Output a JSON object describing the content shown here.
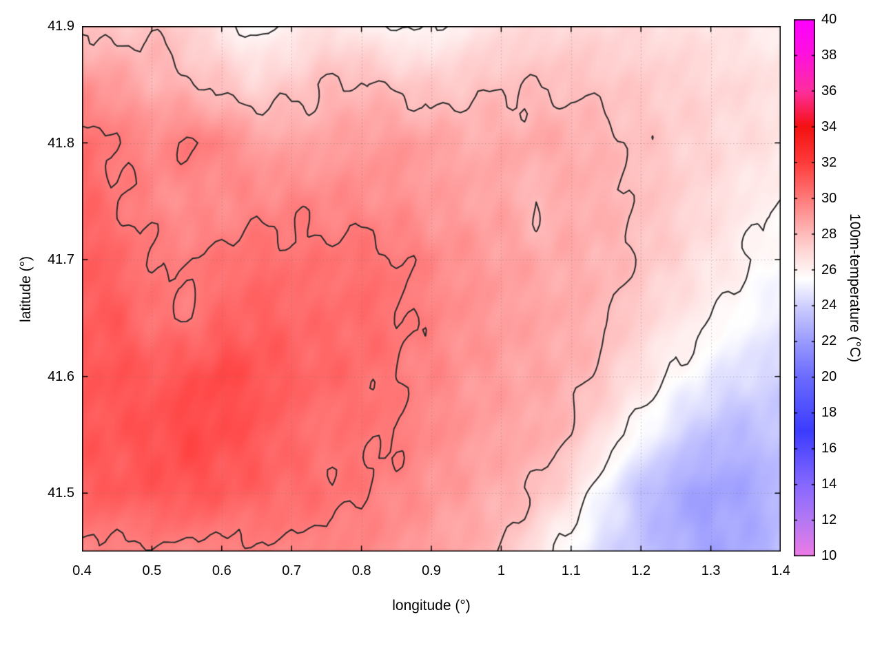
{
  "chart_data": {
    "type": "heatmap",
    "title": "",
    "xlabel": "longitude (°)",
    "ylabel": "latitude (°)",
    "colorbar_label": "100m-temperature (°C)",
    "x_range": [
      0.4,
      1.4
    ],
    "y_range": [
      41.45,
      41.9
    ],
    "x_ticks": [
      0.4,
      0.5,
      0.6,
      0.7,
      0.8,
      0.9,
      1.0,
      1.1,
      1.2,
      1.3,
      1.4
    ],
    "x_tick_labels": [
      "0.4",
      "0.5",
      "0.6",
      "0.7",
      "0.8",
      "0.9",
      "1",
      "1.1",
      "1.2",
      "1.3",
      "1.4"
    ],
    "y_ticks": [
      41.5,
      41.6,
      41.7,
      41.8,
      41.9
    ],
    "y_tick_labels": [
      "41.5",
      "41.6",
      "41.7",
      "41.8",
      "41.9"
    ],
    "colorbar_range": [
      10,
      40
    ],
    "colorbar_ticks": [
      10,
      12,
      14,
      16,
      18,
      20,
      22,
      24,
      26,
      28,
      30,
      32,
      34,
      36,
      38,
      40
    ],
    "colorbar_tick_labels": [
      "10",
      "12",
      "14",
      "16",
      "18",
      "20",
      "22",
      "24",
      "26",
      "28",
      "30",
      "32",
      "34",
      "36",
      "38",
      "40"
    ],
    "contour_levels": [
      26,
      28,
      30
    ],
    "contour_color": "#2b2b2b",
    "grid_line_color": "#787878",
    "palette": [
      {
        "value": 10,
        "color": "#ee7ae6"
      },
      {
        "value": 12,
        "color": "#b478f2"
      },
      {
        "value": 14,
        "color": "#8668ff"
      },
      {
        "value": 17,
        "color": "#3c3cff"
      },
      {
        "value": 20,
        "color": "#6b6bff"
      },
      {
        "value": 22,
        "color": "#9a9aff"
      },
      {
        "value": 24,
        "color": "#cfcfff"
      },
      {
        "value": 25.5,
        "color": "#ffffff"
      },
      {
        "value": 27,
        "color": "#ffd8d8"
      },
      {
        "value": 28,
        "color": "#ffbbbb"
      },
      {
        "value": 30,
        "color": "#ff7a7a"
      },
      {
        "value": 32,
        "color": "#ff3b3b"
      },
      {
        "value": 34,
        "color": "#f31111"
      },
      {
        "value": 36,
        "color": "#ff2e9e"
      },
      {
        "value": 38,
        "color": "#ff12dd"
      },
      {
        "value": 40,
        "color": "#ff00ff"
      }
    ],
    "grid": {
      "x_start": 0.4,
      "x_step": 0.05,
      "y_start": 41.9,
      "y_step": -0.05,
      "values": [
        [
          27.8,
          27.6,
          27.9,
          27.3,
          26.4,
          25.6,
          26.2,
          26.8,
          26.3,
          25.8,
          25.9,
          26.3,
          26.8,
          27.0,
          27.1,
          27.0,
          26.9,
          26.8,
          26.6,
          26.4,
          26.2
        ],
        [
          29.4,
          28.9,
          28.4,
          28.1,
          27.7,
          27.2,
          27.6,
          28.0,
          28.2,
          27.8,
          27.5,
          27.7,
          27.9,
          27.9,
          27.9,
          27.7,
          27.5,
          27.3,
          27.1,
          26.9,
          26.7
        ],
        [
          30.4,
          30.0,
          29.5,
          30.1,
          29.7,
          28.9,
          28.7,
          28.8,
          29.0,
          29.1,
          28.9,
          28.5,
          28.5,
          28.6,
          28.5,
          28.2,
          27.8,
          27.4,
          27.1,
          26.8,
          26.6
        ],
        [
          30.6,
          30.1,
          29.6,
          29.3,
          29.4,
          29.6,
          29.7,
          29.6,
          29.5,
          29.3,
          29.0,
          28.8,
          28.7,
          27.95,
          28.5,
          28.3,
          27.9,
          27.4,
          26.9,
          26.4,
          25.9
        ],
        [
          30.9,
          30.6,
          30.0,
          29.9,
          30.2,
          30.4,
          30.3,
          30.2,
          30.3,
          30.1,
          29.6,
          29.2,
          28.9,
          28.6,
          28.4,
          28.3,
          27.8,
          27.2,
          26.6,
          26.1,
          25.4
        ],
        [
          31.0,
          30.9,
          30.2,
          30.0,
          30.6,
          30.8,
          30.6,
          30.4,
          30.5,
          30.2,
          29.7,
          29.3,
          29.0,
          28.7,
          28.5,
          28.1,
          27.3,
          26.6,
          26.1,
          25.4,
          25.0
        ],
        [
          31.1,
          31.2,
          31.0,
          31.3,
          31.6,
          31.2,
          30.8,
          30.6,
          30.4,
          30.0,
          29.6,
          29.2,
          28.9,
          28.6,
          28.4,
          27.7,
          26.6,
          25.8,
          25.0,
          24.4,
          24.2
        ],
        [
          31.0,
          31.1,
          31.3,
          31.6,
          31.4,
          31.1,
          30.5,
          30.1,
          30.3,
          30.0,
          29.5,
          29.1,
          28.7,
          28.6,
          28.0,
          26.6,
          25.6,
          24.4,
          23.4,
          23.2,
          23.6
        ],
        [
          30.9,
          31.0,
          31.1,
          31.2,
          31.0,
          30.7,
          30.5,
          30.3,
          30.0,
          29.6,
          29.2,
          28.8,
          28.4,
          28.0,
          26.8,
          25.2,
          23.6,
          22.6,
          22.2,
          22.4,
          23.0
        ],
        [
          29.8,
          29.7,
          29.8,
          29.8,
          29.7,
          29.8,
          29.8,
          29.7,
          29.6,
          29.3,
          28.9,
          28.5,
          28.1,
          26.6,
          25.4,
          24.4,
          23.6,
          22.8,
          22.4,
          22.6,
          23.2
        ]
      ]
    }
  }
}
